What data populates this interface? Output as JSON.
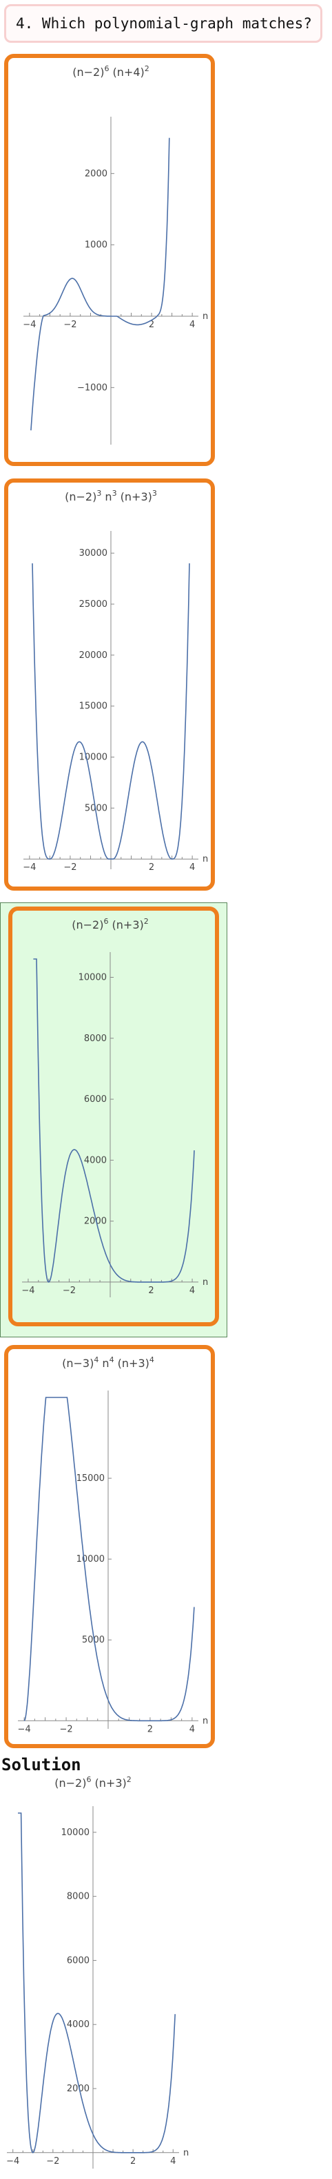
{
  "question": "4. Which polynomial-graph matches?",
  "solution_heading": "Solution",
  "colors": {
    "card_border": "#ee7f1e",
    "curve": "#4b6fa8",
    "highlight": "#e0fbe0",
    "question_border": "#f7d0d0"
  },
  "chart_data": [
    {
      "type": "line",
      "title_parts": [
        "(n−2)",
        "6",
        " (n+4)",
        "2"
      ],
      "xlabel": "n",
      "xlim": [
        -4.3,
        4.3
      ],
      "ylim": [
        -1800,
        2700
      ],
      "x_ticks": [
        -4,
        -2,
        2,
        4
      ],
      "y_ticks": [
        -1000,
        1000,
        2000
      ],
      "y_tick_labels": [
        "−1000",
        "1000",
        "2000"
      ],
      "series": [
        {
          "formula": "(n-2)^6 (n+4)^2",
          "x_range": [
            -3.93,
            2.87
          ]
        }
      ]
    },
    {
      "type": "line",
      "title_parts": [
        "(n−2)",
        "3",
        " n",
        "3",
        " (n+3)",
        "3"
      ],
      "xlabel": "n",
      "xlim": [
        -4.3,
        4.3
      ],
      "ylim": [
        -1000,
        31500
      ],
      "x_ticks": [
        -4,
        -2,
        2,
        4
      ],
      "y_ticks": [
        5000,
        10000,
        15000,
        20000,
        25000,
        30000
      ],
      "y_tick_labels": [
        "5000",
        "10000",
        "15000",
        "20000",
        "25000",
        "30000"
      ],
      "series": [
        {
          "formula": "((n-2) n (n+3))^2 [as drawn]",
          "x_range": [
            -3.86,
            3.86
          ]
        }
      ]
    },
    {
      "type": "line",
      "title_parts": [
        "(n−2)",
        "6",
        " (n+3)",
        "2"
      ],
      "xlabel": "n",
      "xlim": [
        -4.3,
        4.3
      ],
      "ylim": [
        -500,
        10600
      ],
      "x_ticks": [
        -4,
        -2,
        2,
        4
      ],
      "y_ticks": [
        2000,
        4000,
        6000,
        8000,
        10000
      ],
      "y_tick_labels": [
        "2000",
        "4000",
        "6000",
        "8000",
        "10000"
      ],
      "series": [
        {
          "formula": "(n-2)^6 (n+3)^2",
          "x_range": [
            -3.75,
            4.1
          ]
        }
      ]
    },
    {
      "type": "line",
      "title_parts": [
        "(n−3)",
        "4",
        " n",
        "4",
        " (n+3)",
        "4"
      ],
      "xlabel": "n",
      "xlim": [
        -4.3,
        4.3
      ],
      "ylim": [
        -500,
        20000
      ],
      "x_ticks": [
        -4,
        -2,
        2,
        4
      ],
      "y_ticks": [
        5000,
        10000,
        15000
      ],
      "y_tick_labels": [
        "5000",
        "10000",
        "15000"
      ],
      "series": [
        {
          "formula": "(n-2)^6 (n+3)^2 [as drawn, shifted]",
          "x_range": [
            -4.0,
            4.1
          ]
        }
      ]
    },
    {
      "type": "line",
      "title_parts": [
        "(n−2)",
        "6",
        " (n+3)",
        "2"
      ],
      "xlabel": "n",
      "xlim": [
        -4.3,
        4.3
      ],
      "ylim": [
        -500,
        10600
      ],
      "x_ticks": [
        -4,
        -2,
        2,
        4
      ],
      "y_ticks": [
        2000,
        4000,
        6000,
        8000,
        10000
      ],
      "y_tick_labels": [
        "2000",
        "4000",
        "6000",
        "8000",
        "10000"
      ],
      "series": [
        {
          "formula": "(n-2)^6 (n+3)^2",
          "x_range": [
            -3.75,
            4.1
          ]
        }
      ]
    }
  ]
}
